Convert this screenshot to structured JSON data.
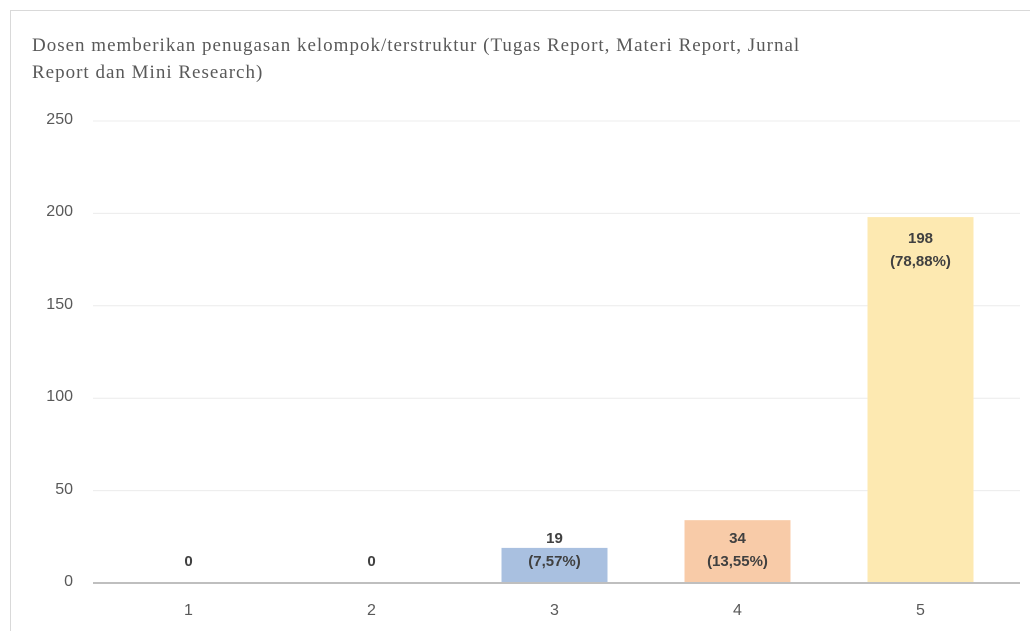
{
  "chart_data": {
    "type": "bar",
    "title": "Dosen memberikan penugasan kelompok/terstruktur (Tugas Report, Materi Report, Jurnal Report dan Mini Research)",
    "categories": [
      "1",
      "2",
      "3",
      "4",
      "5"
    ],
    "values": [
      0,
      0,
      19,
      34,
      198
    ],
    "value_labels": [
      "0",
      "0",
      "19\n(7,57%)",
      "34\n(13,55%)",
      "198\n(78,88%)"
    ],
    "colors": [
      "#a9c0e0",
      "#a9c0e0",
      "#a9c0e0",
      "#f8cba8",
      "#fde9b1"
    ],
    "ylim": [
      0,
      250
    ],
    "yticks": [
      0,
      50,
      100,
      150,
      200,
      250
    ],
    "grid": true
  }
}
